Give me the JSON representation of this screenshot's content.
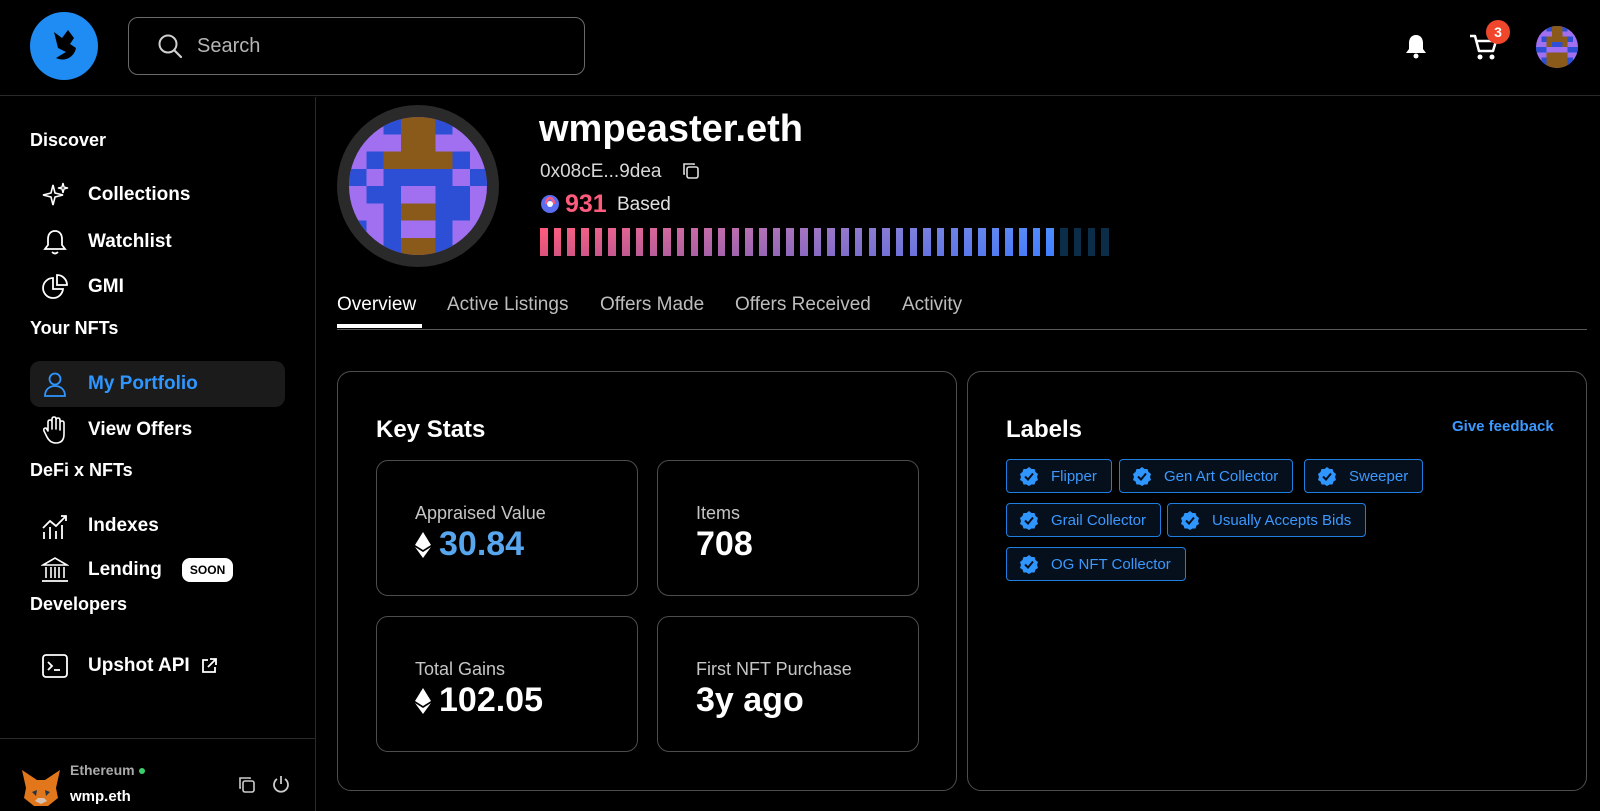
{
  "header": {
    "search_placeholder": "Search",
    "cart_count": "3"
  },
  "sidebar": {
    "sections": [
      {
        "title": "Discover"
      },
      {
        "title": "Your NFTs"
      },
      {
        "title": "DeFi x NFTs"
      },
      {
        "title": "Developers"
      }
    ],
    "items": {
      "collections": "Collections",
      "watchlist": "Watchlist",
      "gmi": "GMI",
      "portfolio": "My Portfolio",
      "offers": "View Offers",
      "indexes": "Indexes",
      "lending": "Lending",
      "lending_badge": "SOON",
      "api": "Upshot API"
    },
    "wallet": {
      "network": "Ethereum",
      "name": "wmp.eth"
    }
  },
  "profile": {
    "name": "wmpeaster.eth",
    "address": "0x08cE...9dea",
    "score": "931",
    "score_label": "Based",
    "score_level": 0.9
  },
  "tabs": [
    "Overview",
    "Active Listings",
    "Offers Made",
    "Offers Received",
    "Activity"
  ],
  "key_stats": {
    "title": "Key Stats",
    "appraised_label": "Appraised Value",
    "appraised_value": "30.84",
    "items_label": "Items",
    "items_value": "708",
    "gains_label": "Total Gains",
    "gains_value": "102.05",
    "first_label": "First NFT Purchase",
    "first_value": "3y ago"
  },
  "labels_card": {
    "title": "Labels",
    "feedback": "Give feedback",
    "labels": [
      "Flipper",
      "Gen Art Collector",
      "Sweeper",
      "Grail Collector",
      "Usually Accepts Bids",
      "OG NFT Collector"
    ]
  },
  "colors": {
    "accent": "#2f96ff",
    "score_pink": "#ff5c7d",
    "badge": "#f0472c"
  }
}
